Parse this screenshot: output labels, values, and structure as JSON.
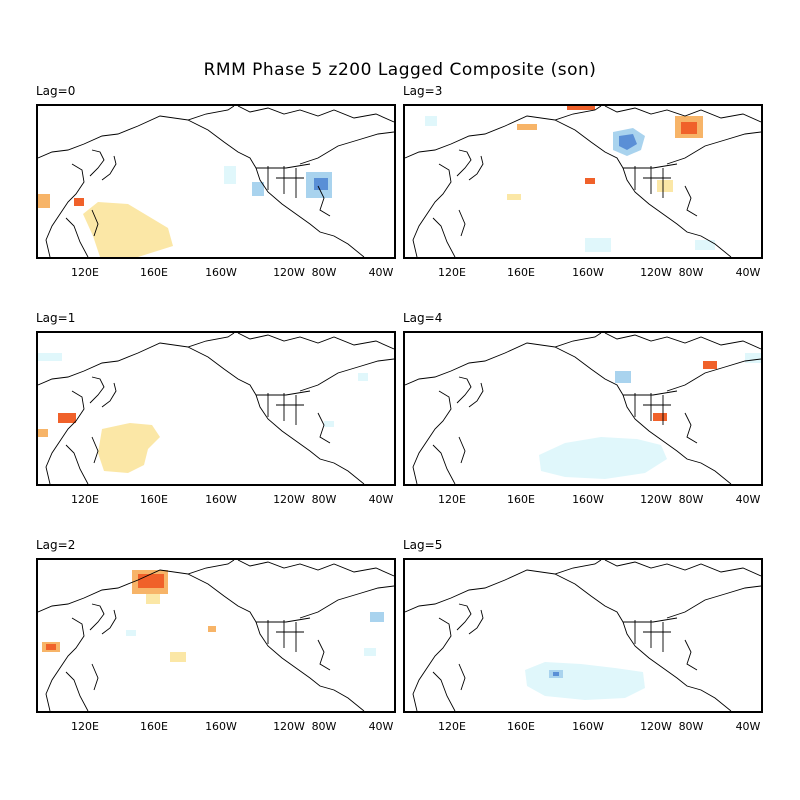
{
  "title": "RMM Phase 5 z200 Lagged Composite (son)",
  "lon_ticks": [
    "120E",
    "160E",
    "160W",
    "120W",
    "80W",
    "40W"
  ],
  "colors": {
    "coast": "#000000",
    "pos_weak": "#fbe7a6",
    "pos_mod": "#f7b468",
    "pos_strong": "#f0612a",
    "neg_weak": "#e0f7fb",
    "neg_mod": "#a9d3ee",
    "neg_strong": "#5a8fd6"
  },
  "panels": [
    {
      "label": "Lag=0"
    },
    {
      "label": "Lag=3"
    },
    {
      "label": "Lag=1"
    },
    {
      "label": "Lag=4"
    },
    {
      "label": "Lag=2"
    },
    {
      "label": "Lag=5"
    }
  ]
}
